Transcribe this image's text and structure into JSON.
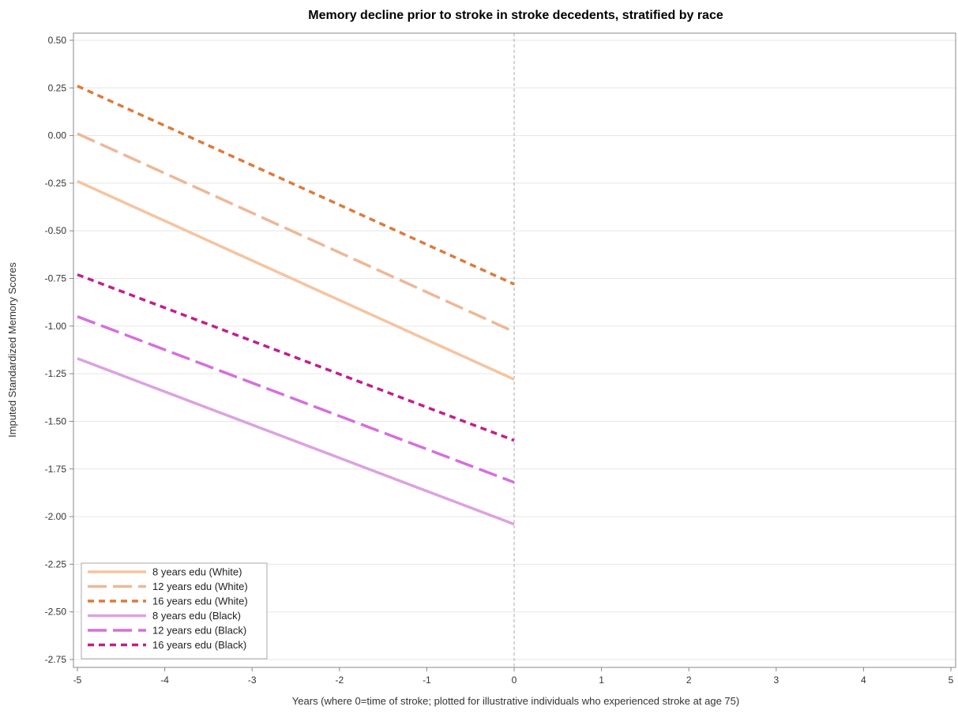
{
  "chart_data": {
    "type": "line",
    "title": "Memory decline prior to stroke in stroke decedents, stratified by race",
    "xlabel": "Years (where 0=time of stroke; plotted for illustrative individuals who experienced stroke at age 75)",
    "ylabel": "Imputed Standardized Memory Scores",
    "xlim": [
      -5,
      5
    ],
    "ylim": [
      -2.75,
      0.5
    ],
    "x_ticks": [
      -5,
      -4,
      -3,
      -2,
      -1,
      0,
      1,
      2,
      3,
      4,
      5
    ],
    "x_tick_labels": [
      "-5",
      "-4",
      "-3",
      "-2",
      "-1",
      "0",
      "1",
      "2",
      "3",
      "4",
      "5"
    ],
    "y_ticks": [
      0.5,
      0.25,
      0,
      -0.25,
      -0.5,
      -0.75,
      -1.0,
      -1.25,
      -1.5,
      -1.75,
      -2.0,
      -2.25,
      -2.5,
      -2.75
    ],
    "y_tick_labels": [
      "0.50",
      "0.25",
      "0.00",
      "-0.25",
      "-0.50",
      "-0.75",
      "-1.00",
      "-1.25",
      "-1.50",
      "-1.75",
      "-2.00",
      "-2.25",
      "-2.50",
      "-2.75"
    ],
    "grid": "horizontal",
    "reference_line_x": 0,
    "legend_position": "bottom-left",
    "series": [
      {
        "name": "8 years edu (White)",
        "x": [
          -5,
          0
        ],
        "values": [
          -0.24,
          -1.28
        ],
        "color": "#f5c4a1",
        "dash": "solid"
      },
      {
        "name": "12 years edu (White)",
        "x": [
          -5,
          0
        ],
        "values": [
          0.01,
          -1.03
        ],
        "color": "#edb897",
        "dash": "long"
      },
      {
        "name": "16 years edu (White)",
        "x": [
          -5,
          0
        ],
        "values": [
          0.26,
          -0.78
        ],
        "color": "#dd7a3c",
        "dash": "short"
      },
      {
        "name": "8 years edu (Black)",
        "x": [
          -5,
          0
        ],
        "values": [
          -1.17,
          -2.04
        ],
        "color": "#dca2e0",
        "dash": "solid"
      },
      {
        "name": "12 years edu (Black)",
        "x": [
          -5,
          0
        ],
        "values": [
          -0.95,
          -1.82
        ],
        "color": "#d66fdc",
        "dash": "long"
      },
      {
        "name": "16 years edu (Black)",
        "x": [
          -5,
          0
        ],
        "values": [
          -0.73,
          -1.6
        ],
        "color": "#c21f8a",
        "dash": "short"
      }
    ]
  }
}
